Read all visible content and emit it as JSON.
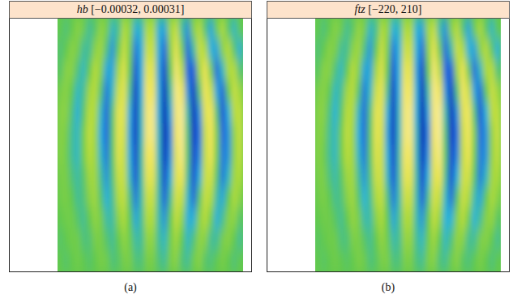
{
  "chart_data": [
    {
      "type": "heatmap",
      "title": "hb [−0.00032, 0.00031]",
      "annotations": [
        "(a)"
      ],
      "tick_labels": false,
      "color_range": [
        -0.00032,
        0.00031
      ],
      "cells": [
        [
          0,
          -3e-05,
          0,
          5e-05,
          2e-05,
          -5e-05,
          -2e-05,
          6e-05,
          3e-05,
          -8e-05,
          -5e-05,
          0.0001,
          6e-05,
          -0.0001,
          -8e-05,
          0.0001,
          0.0001,
          -0.0001,
          -0.00011,
          8e-05,
          0.00013,
          -6e-05,
          -0.00013,
          5e-05,
          0.00011,
          -3e-05,
          -0.00011,
          2e-05,
          0.0001,
          -2e-05,
          -8e-05,
          0
        ],
        [
          -3e-05,
          0,
          5e-05,
          3e-05,
          -5e-05,
          -5e-05,
          5e-05,
          8e-05,
          -3e-05,
          -0.00013,
          0,
          0.00014,
          3e-05,
          -0.00016,
          -0.0001,
          0.00014,
          0.00014,
          -0.0001,
          -0.00018,
          5e-05,
          0.00019,
          2e-05,
          -0.00018,
          -6e-05,
          0.00014,
          0.0001,
          -0.0001,
          -0.00011,
          5e-05,
          0.00011,
          -2e-05,
          -0.0001
        ],
        [
          -2e-05,
          5e-05,
          5e-05,
          -3e-05,
          -8e-05,
          0,
          0.00011,
          5e-05,
          -0.00011,
          -0.00011,
          8e-05,
          0.00018,
          0,
          -0.00021,
          -0.0001,
          0.00019,
          0.00019,
          -0.00011,
          -0.00024,
          0,
          0.00024,
          0.00011,
          -0.00018,
          -0.00019,
          8e-05,
          0.00021,
          2e-05,
          -0.00018,
          -8e-05,
          0.0001,
          0.00011,
          -3e-05
        ],
        [
          3e-05,
          5e-05,
          0,
          -8e-05,
          -5e-05,
          8e-05,
          0.00011,
          -2e-05,
          -0.00016,
          -8e-05,
          0.00014,
          0.00019,
          -5e-05,
          -0.00026,
          -0.0001,
          0.00022,
          0.00022,
          -0.0001,
          -0.00029,
          -6e-05,
          0.00026,
          0.00021,
          -0.00013,
          -0.00026,
          -3e-05,
          0.00022,
          0.00014,
          -0.00011,
          -0.00018,
          0,
          0.00014,
          8e-05
        ],
        [
          5e-05,
          5e-05,
          -3e-05,
          -0.0001,
          -2e-05,
          0.00011,
          0.0001,
          -8e-05,
          -0.00018,
          -3e-05,
          0.00019,
          0.00018,
          -0.0001,
          -0.00027,
          -8e-05,
          0.00024,
          0.00026,
          -0.0001,
          -0.00032,
          -0.00011,
          0.00024,
          0.00027,
          -6e-05,
          -0.00029,
          -0.00013,
          0.00018,
          0.00022,
          -3e-05,
          -0.00021,
          -0.0001,
          0.00011,
          0.00013
        ],
        [
          5e-05,
          3e-05,
          -5e-05,
          -8e-05,
          2e-05,
          0.00013,
          8e-05,
          -0.0001,
          -0.00018,
          -2e-05,
          0.00019,
          0.00016,
          -0.00011,
          -0.00027,
          -8e-05,
          0.00024,
          0.00026,
          -8e-05,
          -0.00032,
          -0.00014,
          0.00022,
          0.00027,
          -3e-05,
          -0.00027,
          -0.00016,
          0.00014,
          0.00022,
          3e-05,
          -0.00018,
          -0.00013,
          6e-05,
          0.00014
        ],
        [
          5e-05,
          2e-05,
          -5e-05,
          -8e-05,
          2e-05,
          0.00011,
          8e-05,
          -8e-05,
          -0.00016,
          -2e-05,
          0.00018,
          0.00014,
          -0.0001,
          -0.00024,
          -6e-05,
          0.00022,
          0.00022,
          -8e-05,
          -0.00029,
          -0.00013,
          0.00019,
          0.00026,
          -2e-05,
          -0.00024,
          -0.00014,
          0.00013,
          0.00021,
          2e-05,
          -0.00016,
          -0.00013,
          6e-05,
          0.00013
        ],
        [
          3e-05,
          3e-05,
          -3e-05,
          -6e-05,
          -2e-05,
          8e-05,
          8e-05,
          -5e-05,
          -0.00013,
          -3e-05,
          0.00014,
          0.00014,
          -8e-05,
          -0.00021,
          -6e-05,
          0.00019,
          0.00019,
          -6e-05,
          -0.00024,
          -0.0001,
          0.00018,
          0.00021,
          -5e-05,
          -0.00022,
          -0.0001,
          0.00014,
          0.00016,
          -2e-05,
          -0.00016,
          -8e-05,
          8e-05,
          0.0001
        ],
        [
          2e-05,
          3e-05,
          0,
          -5e-05,
          -3e-05,
          5e-05,
          8e-05,
          -2e-05,
          -0.0001,
          -5e-05,
          0.0001,
          0.00013,
          -3e-05,
          -0.00016,
          -6e-05,
          0.00014,
          0.00014,
          -6e-05,
          -0.00019,
          -5e-05,
          0.00016,
          0.00013,
          -8e-05,
          -0.00018,
          -2e-05,
          0.00014,
          0.0001,
          -6e-05,
          -0.00011,
          0,
          0.0001,
          5e-05
        ],
        [
          0,
          2e-05,
          2e-05,
          -2e-05,
          -5e-05,
          0,
          6e-05,
          3e-05,
          -6e-05,
          -6e-05,
          5e-05,
          0.0001,
          0,
          -0.00011,
          -5e-05,
          0.0001,
          0.0001,
          -6e-05,
          -0.00013,
          0,
          0.00013,
          6e-05,
          -0.0001,
          -0.0001,
          5e-05,
          0.00011,
          2e-05,
          -0.0001,
          -5e-05,
          5e-05,
          6e-05,
          -2e-05
        ],
        [
          -2e-05,
          0,
          2e-05,
          2e-05,
          -3e-05,
          -3e-05,
          3e-05,
          3e-05,
          -2e-05,
          -5e-05,
          0,
          6e-05,
          2e-05,
          -6e-05,
          -5e-05,
          6e-05,
          6e-05,
          -5e-05,
          -8e-05,
          2e-05,
          8e-05,
          0,
          -8e-05,
          -3e-05,
          6e-05,
          5e-05,
          -5e-05,
          -5e-05,
          3e-05,
          5e-05,
          0,
          -5e-05
        ],
        [
          0,
          -2e-05,
          0,
          2e-05,
          0,
          -2e-05,
          0,
          3e-05,
          2e-05,
          -3e-05,
          -2e-05,
          3e-05,
          3e-05,
          -3e-05,
          -3e-05,
          3e-05,
          3e-05,
          -3e-05,
          -5e-05,
          3e-05,
          5e-05,
          -3e-05,
          -5e-05,
          2e-05,
          5e-05,
          -2e-05,
          -3e-05,
          0,
          3e-05,
          0,
          -3e-05,
          0
        ]
      ]
    },
    {
      "type": "heatmap",
      "title": "ftz [−220, 210]",
      "annotations": [
        "(b)"
      ],
      "tick_labels": false,
      "color_range": [
        -220,
        210
      ],
      "cells": [
        [
          0,
          -22,
          0,
          33,
          11,
          -33,
          -11,
          44,
          22,
          -55,
          -33,
          66,
          44,
          -66,
          -55,
          66,
          66,
          -66,
          -77,
          55,
          88,
          -44,
          -88,
          33,
          77,
          -22,
          -77,
          11,
          66,
          -11,
          -55,
          0
        ],
        [
          -22,
          0,
          33,
          22,
          -33,
          -33,
          33,
          55,
          -22,
          -88,
          0,
          99,
          22,
          -110,
          -66,
          99,
          99,
          -66,
          -121,
          33,
          132,
          11,
          -121,
          -44,
          99,
          66,
          -66,
          -77,
          33,
          77,
          -11,
          -66
        ],
        [
          -11,
          33,
          33,
          -22,
          -55,
          0,
          77,
          33,
          -77,
          -77,
          55,
          121,
          0,
          -143,
          -66,
          132,
          132,
          -77,
          -165,
          0,
          165,
          77,
          -121,
          -132,
          55,
          143,
          11,
          -121,
          -55,
          66,
          77,
          -22
        ],
        [
          22,
          33,
          0,
          -55,
          -33,
          55,
          77,
          -11,
          -110,
          -55,
          99,
          132,
          -33,
          -176,
          -66,
          154,
          154,
          -66,
          -198,
          -44,
          176,
          143,
          -88,
          -176,
          -22,
          154,
          99,
          -77,
          -121,
          0,
          99,
          55
        ],
        [
          33,
          33,
          -22,
          -66,
          -11,
          77,
          66,
          -55,
          -121,
          -22,
          132,
          121,
          -66,
          -187,
          -55,
          165,
          176,
          -66,
          -220,
          -77,
          165,
          187,
          -44,
          -198,
          -88,
          121,
          154,
          -22,
          -143,
          -66,
          77,
          88
        ],
        [
          33,
          22,
          -33,
          -55,
          11,
          88,
          55,
          -66,
          -121,
          -11,
          132,
          110,
          -77,
          -187,
          -55,
          165,
          176,
          -55,
          -220,
          -99,
          154,
          187,
          -22,
          -187,
          -110,
          99,
          154,
          22,
          -121,
          -88,
          44,
          99
        ],
        [
          33,
          11,
          -33,
          -55,
          11,
          77,
          55,
          -55,
          -110,
          -11,
          121,
          99,
          -66,
          -165,
          -44,
          154,
          154,
          -55,
          -198,
          -88,
          132,
          176,
          -11,
          -165,
          -99,
          88,
          143,
          11,
          -110,
          -88,
          44,
          88
        ],
        [
          22,
          22,
          -22,
          -44,
          -11,
          55,
          55,
          -33,
          -88,
          -22,
          99,
          99,
          -55,
          -143,
          -44,
          132,
          132,
          -44,
          -165,
          -66,
          121,
          143,
          -33,
          -154,
          -66,
          99,
          110,
          -11,
          -110,
          -55,
          55,
          66
        ],
        [
          11,
          22,
          0,
          -33,
          -22,
          33,
          55,
          -11,
          -66,
          -33,
          66,
          88,
          -22,
          -110,
          -44,
          99,
          99,
          -44,
          -132,
          -33,
          110,
          88,
          -55,
          -121,
          -11,
          99,
          66,
          -44,
          -77,
          0,
          66,
          33
        ],
        [
          0,
          11,
          11,
          -11,
          -33,
          0,
          44,
          22,
          -44,
          -44,
          33,
          66,
          0,
          -77,
          -33,
          66,
          66,
          -44,
          -88,
          0,
          88,
          44,
          -66,
          -66,
          33,
          77,
          11,
          -66,
          -33,
          33,
          44,
          -11
        ],
        [
          -11,
          0,
          11,
          11,
          -22,
          -22,
          22,
          22,
          -11,
          -33,
          0,
          44,
          11,
          -44,
          -33,
          44,
          44,
          -33,
          -55,
          11,
          55,
          0,
          -55,
          -22,
          44,
          33,
          -33,
          -33,
          22,
          33,
          0,
          -33
        ],
        [
          0,
          -11,
          0,
          11,
          0,
          -11,
          0,
          22,
          11,
          -22,
          -11,
          22,
          22,
          -22,
          -22,
          22,
          22,
          -22,
          -33,
          22,
          33,
          -22,
          -33,
          11,
          33,
          -11,
          -22,
          0,
          22,
          0,
          -22,
          0
        ]
      ]
    }
  ]
}
